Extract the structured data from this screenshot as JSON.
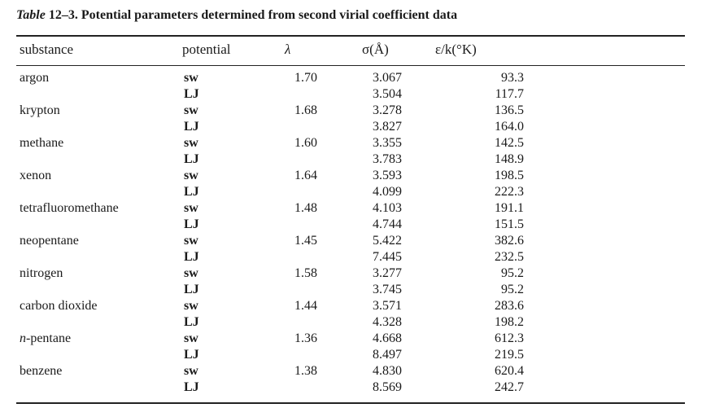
{
  "caption": {
    "label": "Table",
    "number": "12–3.",
    "text": "Potential parameters determined from second virial coefficient data"
  },
  "headers": {
    "substance": "substance",
    "potential": "potential",
    "lambda": "λ",
    "sigma": "σ(Å)",
    "epsilon": "ε/k(°K)"
  },
  "rows": [
    {
      "substance": "argon",
      "sw": {
        "potential": "sw",
        "lambda": "1.70",
        "sigma": "3.067",
        "epsilon": "93.3"
      },
      "lj": {
        "potential": "LJ",
        "sigma": "3.504",
        "epsilon": "117.7"
      }
    },
    {
      "substance": "krypton",
      "sw": {
        "potential": "sw",
        "lambda": "1.68",
        "sigma": "3.278",
        "epsilon": "136.5"
      },
      "lj": {
        "potential": "LJ",
        "sigma": "3.827",
        "epsilon": "164.0"
      }
    },
    {
      "substance": "methane",
      "sw": {
        "potential": "sw",
        "lambda": "1.60",
        "sigma": "3.355",
        "epsilon": "142.5"
      },
      "lj": {
        "potential": "LJ",
        "sigma": "3.783",
        "epsilon": "148.9"
      }
    },
    {
      "substance": "xenon",
      "sw": {
        "potential": "sw",
        "lambda": "1.64",
        "sigma": "3.593",
        "epsilon": "198.5"
      },
      "lj": {
        "potential": "LJ",
        "sigma": "4.099",
        "epsilon": "222.3"
      }
    },
    {
      "substance": "tetrafluoromethane",
      "sw": {
        "potential": "sw",
        "lambda": "1.48",
        "sigma": "4.103",
        "epsilon": "191.1"
      },
      "lj": {
        "potential": "LJ",
        "sigma": "4.744",
        "epsilon": "151.5"
      }
    },
    {
      "substance": "neopentane",
      "sw": {
        "potential": "sw",
        "lambda": "1.45",
        "sigma": "5.422",
        "epsilon": "382.6"
      },
      "lj": {
        "potential": "LJ",
        "sigma": "7.445",
        "epsilon": "232.5"
      }
    },
    {
      "substance": "nitrogen",
      "sw": {
        "potential": "sw",
        "lambda": "1.58",
        "sigma": "3.277",
        "epsilon": "95.2"
      },
      "lj": {
        "potential": "LJ",
        "sigma": "3.745",
        "epsilon": "95.2"
      }
    },
    {
      "substance": "carbon dioxide",
      "sw": {
        "potential": "sw",
        "lambda": "1.44",
        "sigma": "3.571",
        "epsilon": "283.6"
      },
      "lj": {
        "potential": "LJ",
        "sigma": "4.328",
        "epsilon": "198.2"
      }
    },
    {
      "substance_prefix": "n",
      "substance": "-pentane",
      "sw": {
        "potential": "sw",
        "lambda": "1.36",
        "sigma": "4.668",
        "epsilon": "612.3"
      },
      "lj": {
        "potential": "LJ",
        "sigma": "8.497",
        "epsilon": "219.5"
      }
    },
    {
      "substance": "benzene",
      "sw": {
        "potential": "sw",
        "lambda": "1.38",
        "sigma": "4.830",
        "epsilon": "620.4"
      },
      "lj": {
        "potential": "LJ",
        "sigma": "8.569",
        "epsilon": "242.7"
      }
    }
  ]
}
